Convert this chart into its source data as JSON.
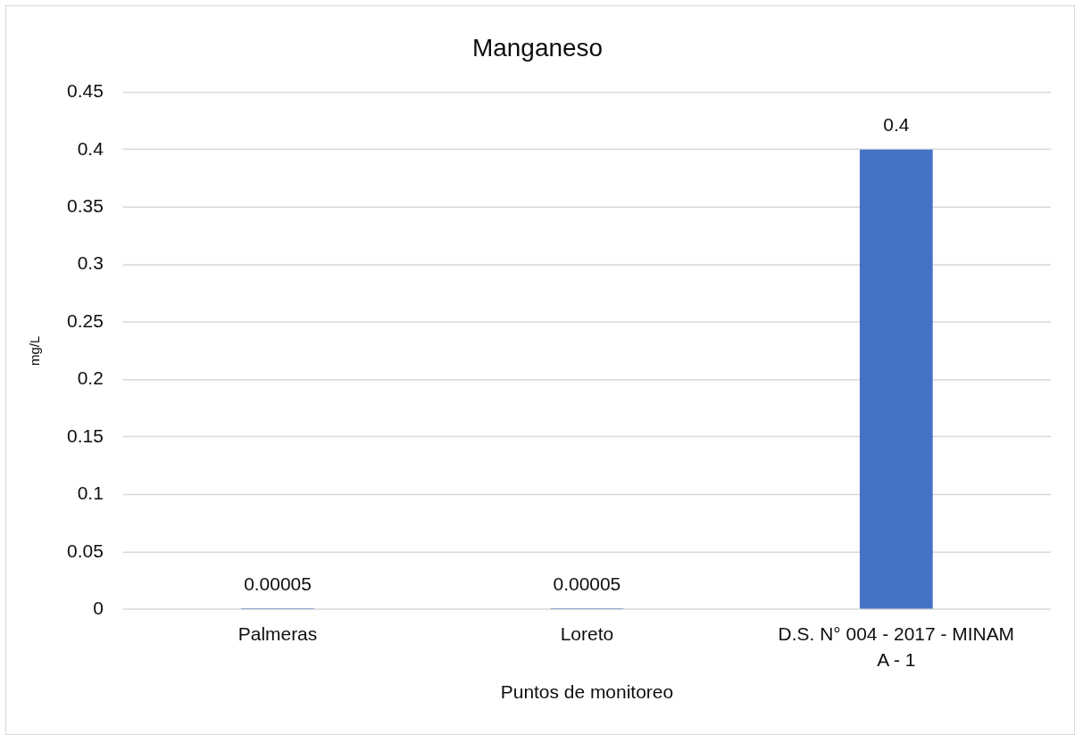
{
  "chart_data": {
    "type": "bar",
    "title": "Manganeso",
    "xlabel": "Puntos de monitoreo",
    "ylabel": "mg/L",
    "categories": [
      "Palmeras",
      "Loreto",
      "D.S. N° 004 - 2017 - MINAM A - 1"
    ],
    "values": [
      5e-05,
      5e-05,
      0.4
    ],
    "value_labels": [
      "0.00005",
      "0.00005",
      "0.4"
    ],
    "color": "#4472c4",
    "ylim": [
      0,
      0.45
    ],
    "yticks": [
      0,
      0.05,
      0.1,
      0.15,
      0.2,
      0.25,
      0.3,
      0.35,
      0.4,
      0.45
    ],
    "grid": "y"
  }
}
